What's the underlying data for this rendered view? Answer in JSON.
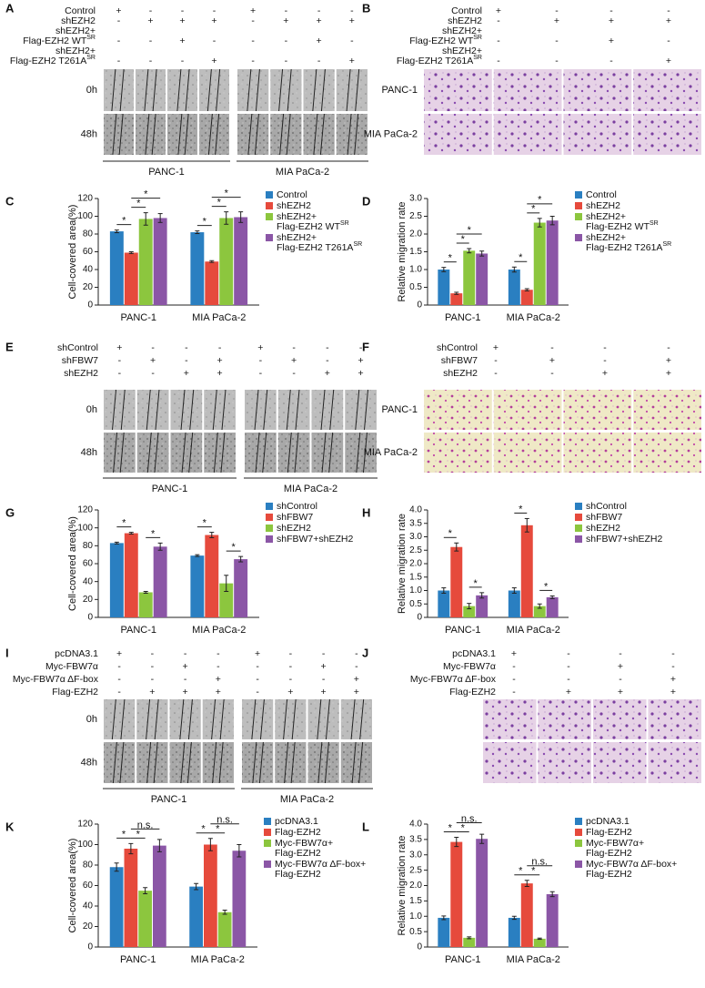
{
  "image_panels": [
    {
      "panel": "A",
      "rows": [
        {
          "label": [
            "Control"
          ],
          "signs": [
            "+",
            "-",
            "-",
            "-",
            "+",
            "-",
            "-",
            "-"
          ]
        },
        {
          "label": [
            "shEZH2"
          ],
          "signs": [
            "-",
            "+",
            "+",
            "+",
            "-",
            "+",
            "+",
            "+"
          ]
        },
        {
          "label": [
            "shEZH2+",
            "Flag-EZH2 WT"
          ],
          "label_sup": "SR",
          "signs": [
            "-",
            "-",
            "+",
            "-",
            "-",
            "-",
            "+",
            "-"
          ]
        },
        {
          "label": [
            "shEZH2+",
            "Flag-EZH2 T261A"
          ],
          "label_sup": "SR",
          "signs": [
            "-",
            "-",
            "-",
            "+",
            "-",
            "-",
            "-",
            "+"
          ]
        }
      ],
      "time_labels": [
        "0h",
        "48h"
      ],
      "cell_lines": [
        "PANC-1",
        "MIA PaCa-2"
      ]
    },
    {
      "panel": "B",
      "rows": [
        {
          "label": [
            "Control"
          ],
          "signs": [
            "+",
            "-",
            "-",
            "-"
          ]
        },
        {
          "label": [
            "shEZH2"
          ],
          "signs": [
            "-",
            "+",
            "+",
            "+"
          ]
        },
        {
          "label": [
            "shEZH2+",
            "Flag-EZH2 WT"
          ],
          "label_sup": "SR",
          "signs": [
            "-",
            "-",
            "+",
            "-"
          ]
        },
        {
          "label": [
            "shEZH2+",
            "Flag-EZH2 T261A"
          ],
          "label_sup": "SR",
          "signs": [
            "-",
            "-",
            "-",
            "+"
          ]
        }
      ],
      "row_labels": [
        "PANC-1",
        "MIA PaCa-2"
      ]
    },
    {
      "panel": "E",
      "rows": [
        {
          "label": [
            "shControl"
          ],
          "signs": [
            "+",
            "-",
            "-",
            "-",
            "+",
            "-",
            "-",
            "-"
          ]
        },
        {
          "label": [
            "shFBW7"
          ],
          "signs": [
            "-",
            "+",
            "-",
            "+",
            "-",
            "+",
            "-",
            "+"
          ]
        },
        {
          "label": [
            "shEZH2"
          ],
          "signs": [
            "-",
            "-",
            "+",
            "+",
            "-",
            "-",
            "+",
            "+"
          ]
        }
      ],
      "time_labels": [
        "0h",
        "48h"
      ],
      "cell_lines": [
        "PANC-1",
        "MIA PaCa-2"
      ]
    },
    {
      "panel": "F",
      "rows": [
        {
          "label": [
            "shControl"
          ],
          "signs": [
            "+",
            "-",
            "-",
            "-"
          ]
        },
        {
          "label": [
            "shFBW7"
          ],
          "signs": [
            "-",
            "+",
            "-",
            "+"
          ]
        },
        {
          "label": [
            "shEZH2"
          ],
          "signs": [
            "-",
            "-",
            "+",
            "+"
          ]
        }
      ],
      "row_labels": [
        "PANC-1",
        "MIA PaCa-2"
      ]
    },
    {
      "panel": "I",
      "rows": [
        {
          "label": [
            "pcDNA3.1"
          ],
          "signs": [
            "+",
            "-",
            "-",
            "-",
            "+",
            "-",
            "-",
            "-"
          ]
        },
        {
          "label": [
            "Myc-FBW7α"
          ],
          "signs": [
            "-",
            "-",
            "+",
            "-",
            "-",
            "-",
            "+",
            "-"
          ]
        },
        {
          "label": [
            "Myc-FBW7α ΔF-box"
          ],
          "signs": [
            "-",
            "-",
            "-",
            "+",
            "-",
            "-",
            "-",
            "+"
          ]
        },
        {
          "label": [
            "Flag-EZH2"
          ],
          "signs": [
            "-",
            "+",
            "+",
            "+",
            "-",
            "+",
            "+",
            "+"
          ]
        }
      ],
      "time_labels": [
        "0h",
        "48h"
      ],
      "cell_lines": [
        "PANC-1",
        "MIA PaCa-2"
      ]
    },
    {
      "panel": "J",
      "rows": [
        {
          "label": [
            "pcDNA3.1"
          ],
          "signs": [
            "+",
            "-",
            "-",
            "-"
          ]
        },
        {
          "label": [
            "Myc-FBW7α"
          ],
          "signs": [
            "-",
            "-",
            "+",
            "-"
          ]
        },
        {
          "label": [
            "Myc-FBW7α ΔF-box"
          ],
          "signs": [
            "-",
            "-",
            "-",
            "+"
          ]
        },
        {
          "label": [
            "Flag-EZH2"
          ],
          "signs": [
            "-",
            "+",
            "+",
            "+"
          ]
        }
      ]
    }
  ],
  "chart_data": [
    {
      "type": "bar",
      "panel": "C",
      "y_label": "Cell-covered area(%)",
      "categories": [
        "PANC-1",
        "MIA PaCa-2"
      ],
      "series": [
        {
          "name": [
            "Control"
          ],
          "color": "#2a7fc1",
          "values": [
            83,
            82
          ],
          "errors": [
            1.5,
            1.5
          ]
        },
        {
          "name": [
            "shEZH2"
          ],
          "color": "#e64a3c",
          "values": [
            59,
            49
          ],
          "errors": [
            1,
            1
          ]
        },
        {
          "name": [
            "shEZH2+",
            "Flag-EZH2 WT"
          ],
          "name_sup": "SR",
          "color": "#8cc63e",
          "values": [
            97,
            98
          ],
          "errors": [
            7,
            7
          ]
        },
        {
          "name": [
            "shEZH2+",
            "Flag-EZH2 T261A"
          ],
          "name_sup": "SR",
          "color": "#8b56a6",
          "values": [
            98,
            99
          ],
          "errors": [
            5,
            6
          ]
        }
      ],
      "ylim": [
        0,
        120
      ],
      "yticks": [
        0,
        20,
        40,
        60,
        80,
        100,
        120
      ],
      "significance": [
        [
          "*",
          "*",
          "*"
        ],
        [
          "*",
          "*",
          "*"
        ]
      ]
    },
    {
      "type": "bar",
      "panel": "D",
      "y_label": "Relative migration rate",
      "categories": [
        "PANC-1",
        "MIA PaCa-2"
      ],
      "series": [
        {
          "name": [
            "Control"
          ],
          "color": "#2a7fc1",
          "values": [
            1.0,
            1.0
          ],
          "errors": [
            0.06,
            0.07
          ]
        },
        {
          "name": [
            "shEZH2"
          ],
          "color": "#e64a3c",
          "values": [
            0.33,
            0.43
          ],
          "errors": [
            0.03,
            0.03
          ]
        },
        {
          "name": [
            "shEZH2+",
            "Flag-EZH2 WT"
          ],
          "name_sup": "SR",
          "color": "#8cc63e",
          "values": [
            1.53,
            2.32
          ],
          "errors": [
            0.06,
            0.12
          ]
        },
        {
          "name": [
            "shEZH2+",
            "Flag-EZH2 T261A"
          ],
          "name_sup": "SR",
          "color": "#8b56a6",
          "values": [
            1.45,
            2.38
          ],
          "errors": [
            0.07,
            0.12
          ]
        }
      ],
      "ylim": [
        0,
        3
      ],
      "yticks": [
        0,
        0.5,
        {
          "value": 1,
          "label": "1.0"
        },
        1.5,
        {
          "value": 2,
          "label": "2.0"
        },
        2.5,
        {
          "value": 3,
          "label": "3.0"
        }
      ],
      "significance": [
        [
          "*",
          "*",
          "*"
        ],
        [
          "*",
          "*",
          "*"
        ]
      ]
    },
    {
      "type": "bar",
      "panel": "G",
      "y_label": "Cell-covered area(%)",
      "categories": [
        "PANC-1",
        "MIA PaCa-2"
      ],
      "series": [
        {
          "name": [
            "shControl"
          ],
          "color": "#2a7fc1",
          "values": [
            83,
            69
          ],
          "errors": [
            1,
            1
          ]
        },
        {
          "name": [
            "shFBW7"
          ],
          "color": "#e64a3c",
          "values": [
            94,
            92
          ],
          "errors": [
            1,
            3
          ]
        },
        {
          "name": [
            "shEZH2"
          ],
          "color": "#8cc63e",
          "values": [
            28,
            38
          ],
          "errors": [
            1,
            9
          ]
        },
        {
          "name": [
            "shFBW7+shEZH2"
          ],
          "color": "#8b56a6",
          "values": [
            79,
            65
          ],
          "errors": [
            4,
            3
          ]
        }
      ],
      "ylim": [
        0,
        120
      ],
      "yticks": [
        0,
        20,
        40,
        60,
        80,
        100,
        120
      ],
      "significance": [
        [
          "*",
          "*"
        ],
        [
          "*",
          "*"
        ]
      ]
    },
    {
      "type": "bar",
      "panel": "H",
      "y_label": "Relative migration rate",
      "categories": [
        "PANC-1",
        "MIA PaCa-2"
      ],
      "series": [
        {
          "name": [
            "shControl"
          ],
          "color": "#2a7fc1",
          "values": [
            1.0,
            1.0
          ],
          "errors": [
            0.1,
            0.1
          ]
        },
        {
          "name": [
            "shFBW7"
          ],
          "color": "#e64a3c",
          "values": [
            2.62,
            3.43
          ],
          "errors": [
            0.15,
            0.25
          ]
        },
        {
          "name": [
            "shEZH2"
          ],
          "color": "#8cc63e",
          "values": [
            0.42,
            0.42
          ],
          "errors": [
            0.1,
            0.08
          ]
        },
        {
          "name": [
            "shFBW7+shEZH2"
          ],
          "color": "#8b56a6",
          "values": [
            0.82,
            0.75
          ],
          "errors": [
            0.1,
            0.05
          ]
        }
      ],
      "ylim": [
        0,
        4
      ],
      "yticks": [
        0,
        0.5,
        {
          "value": 1,
          "label": "1.0"
        },
        1.5,
        {
          "value": 2,
          "label": "2.0"
        },
        2.5,
        {
          "value": 3,
          "label": "3.0"
        },
        3.5,
        {
          "value": 4,
          "label": "4.0"
        }
      ],
      "significance": [
        [
          "*",
          "*"
        ],
        [
          "*",
          "*"
        ]
      ]
    },
    {
      "type": "bar",
      "panel": "K",
      "y_label": "Cell-covered area(%)",
      "categories": [
        "PANC-1",
        "MIA PaCa-2"
      ],
      "series": [
        {
          "name": [
            "pcDNA3.1"
          ],
          "color": "#2a7fc1",
          "values": [
            78,
            59
          ],
          "errors": [
            4,
            3
          ]
        },
        {
          "name": [
            "Flag-EZH2"
          ],
          "color": "#e64a3c",
          "values": [
            96,
            100
          ],
          "errors": [
            5,
            6
          ]
        },
        {
          "name": [
            "Myc-FBW7α+",
            "Flag-EZH2"
          ],
          "color": "#8cc63e",
          "values": [
            55,
            34
          ],
          "errors": [
            3,
            2
          ]
        },
        {
          "name": [
            "Myc-FBW7α ΔF-box+",
            "Flag-EZH2"
          ],
          "color": "#8b56a6",
          "values": [
            99,
            94
          ],
          "errors": [
            6,
            6
          ]
        }
      ],
      "ylim": [
        0,
        120
      ],
      "yticks": [
        0,
        20,
        40,
        60,
        80,
        100,
        120
      ],
      "significance": [
        [
          "*",
          "*",
          "n.s."
        ],
        [
          "*",
          "*",
          "n.s."
        ]
      ]
    },
    {
      "type": "bar",
      "panel": "L",
      "y_label": "Relative migration rate",
      "categories": [
        "PANC-1",
        "MIA PaCa-2"
      ],
      "series": [
        {
          "name": [
            "pcDNA3.1"
          ],
          "color": "#2a7fc1",
          "values": [
            0.95,
            0.95
          ],
          "errors": [
            0.06,
            0.05
          ]
        },
        {
          "name": [
            "Flag-EZH2"
          ],
          "color": "#e64a3c",
          "values": [
            3.42,
            2.07
          ],
          "errors": [
            0.15,
            0.1
          ]
        },
        {
          "name": [
            "Myc-FBW7α+",
            "Flag-EZH2"
          ],
          "color": "#8cc63e",
          "values": [
            0.3,
            0.27
          ],
          "errors": [
            0.03,
            0.02
          ]
        },
        {
          "name": [
            "Myc-FBW7α ΔF-box+",
            "Flag-EZH2"
          ],
          "color": "#8b56a6",
          "values": [
            3.52,
            1.72
          ],
          "errors": [
            0.15,
            0.08
          ]
        }
      ],
      "ylim": [
        0,
        4
      ],
      "yticks": [
        0,
        0.5,
        {
          "value": 1,
          "label": "1.0"
        },
        1.5,
        {
          "value": 2,
          "label": "2.0"
        },
        2.5,
        {
          "value": 3,
          "label": "3.0"
        },
        3.5,
        {
          "value": 4,
          "label": "4.0"
        }
      ],
      "significance": [
        [
          "*",
          "*",
          "n.s."
        ],
        [
          "*",
          "*",
          "n.s."
        ]
      ]
    }
  ]
}
